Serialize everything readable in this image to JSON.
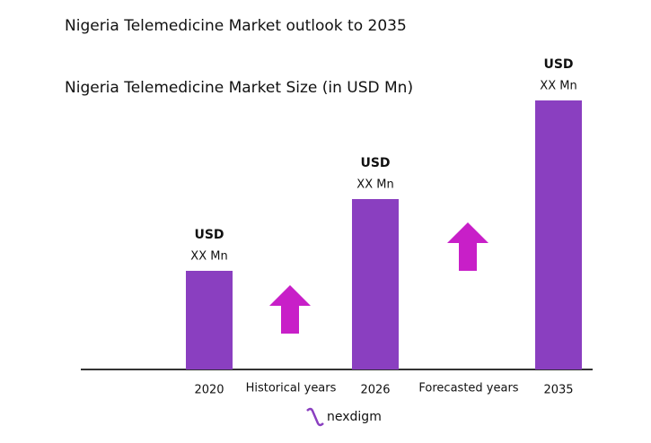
{
  "chart_data": {
    "type": "bar",
    "title": "Nigeria Telemedicine Market outlook to 2035",
    "subtitle": "Nigeria Telemedicine Market Size (in USD Mn)",
    "categories": [
      "2020",
      "2026",
      "2035"
    ],
    "values": [
      110,
      190,
      300
    ],
    "bar_labels": [
      [
        "USD",
        "XX Mn"
      ],
      [
        "USD",
        "XX Mn"
      ],
      [
        "USD",
        "XX Mn"
      ]
    ],
    "period_labels": [
      "Historical years",
      "Forecasted years"
    ],
    "color": "#8a3fc0",
    "ylim": [
      0,
      300
    ],
    "logo": "nexdigm"
  }
}
